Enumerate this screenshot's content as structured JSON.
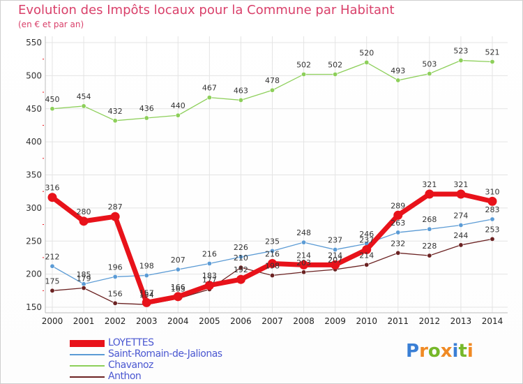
{
  "header": {
    "title": "Evolution des Impôts locaux pour la Commune par Habitant",
    "subtitle": "(en € et par an)"
  },
  "logo": {
    "letters": [
      "P",
      "r",
      "o",
      "x",
      "i",
      "t",
      "i"
    ],
    "colors": [
      "#3a7fd5",
      "#f08a24",
      "#76b82a",
      "#f08a24",
      "#3a7fd5",
      "#76b82a",
      "#f08a24"
    ]
  },
  "chart_data": {
    "type": "line",
    "title": "Evolution des Impôts locaux pour la Commune par Habitant",
    "subtitle": "(en € et par an)",
    "xlabel": "",
    "ylabel": "",
    "x": [
      "2000",
      "2001",
      "2002",
      "2003",
      "2004",
      "2005",
      "2006",
      "2007",
      "2008",
      "2009",
      "2010",
      "2011",
      "2012",
      "2013",
      "2014"
    ],
    "ylim": [
      150,
      550
    ],
    "yticks": [
      150,
      200,
      250,
      300,
      350,
      400,
      450,
      500,
      550
    ],
    "grid": true,
    "legend_position": "bottom-left",
    "series": [
      {
        "name": "LOYETTES",
        "color": "#e8121a",
        "emphasis": true,
        "values": [
          316,
          280,
          287,
          157,
          166,
          183,
          192,
          216,
          214,
          214,
          237,
          289,
          321,
          321,
          310
        ],
        "labels": [
          "316",
          "280",
          "287",
          "157",
          "166",
          "183",
          "192",
          "216",
          "214",
          "214",
          "237",
          "289",
          "321",
          "321",
          "310"
        ]
      },
      {
        "name": "Saint-Romain-de-Jalionas",
        "color": "#5b9bd5",
        "emphasis": false,
        "values": [
          212,
          185,
          196,
          198,
          207,
          216,
          226,
          235,
          248,
          237,
          246,
          263,
          268,
          274,
          283
        ],
        "labels": [
          "212",
          "185",
          "196",
          "198",
          "207",
          "216",
          "226",
          "235",
          "248",
          "237",
          "246",
          "263",
          "268",
          "274",
          "283"
        ]
      },
      {
        "name": "Chavanoz",
        "color": "#8dcf5a",
        "emphasis": false,
        "values": [
          450,
          454,
          432,
          436,
          440,
          467,
          463,
          478,
          502,
          502,
          520,
          493,
          503,
          523,
          521
        ],
        "labels": [
          "450",
          "454",
          "432",
          "436",
          "440",
          "467",
          "463",
          "478",
          "502",
          "502",
          "520",
          "493",
          "503",
          "523",
          "521"
        ]
      },
      {
        "name": "Anthon",
        "color": "#6b2222",
        "emphasis": false,
        "values": [
          175,
          179,
          156,
          154,
          163,
          177,
          210,
          198,
          203,
          207,
          214,
          232,
          228,
          244,
          253
        ],
        "labels": [
          "175",
          "179",
          "156",
          "154",
          "163",
          "177",
          "210",
          "198",
          "203",
          "207",
          "214",
          "232",
          "228",
          "244",
          "253"
        ]
      }
    ]
  }
}
